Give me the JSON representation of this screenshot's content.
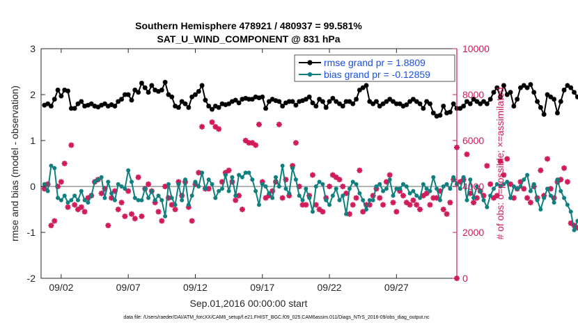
{
  "colors": {
    "rmse": "#000000",
    "bias": "#0f7f7f",
    "obs": "#d01c5a",
    "zero_line": "#b3b3b3"
  },
  "chart_data": {
    "type": "line",
    "title": "Southern Hemisphere 478921 / 480937 = 99.581%",
    "subtitle": "SAT_U_WIND_COMPONENT @ 831 hPa",
    "xlabel": "Sep.01,2016 00:00:00 start",
    "ylabel_left": "rmse and bias (model - observation)",
    "ylabel_right": "# of obs: o=possible; ×=assimilated",
    "ylim_left": [
      -2,
      3
    ],
    "ylim_right": [
      0,
      10000
    ],
    "xlim_days": [
      0.5,
      31.5
    ],
    "x_tick_labels": [
      "09/02",
      "09/07",
      "09/12",
      "09/17",
      "09/22",
      "09/27"
    ],
    "x_tick_days": [
      2,
      7,
      12,
      17,
      22,
      27
    ],
    "y_left_ticks": [
      "-2",
      "-1",
      "0",
      "1",
      "2",
      "3"
    ],
    "y_right_ticks": [
      "0",
      "2000",
      "4000",
      "6000",
      "8000",
      "10000"
    ],
    "legend": [
      "rmse grand pr = 1.8809",
      "bias grand pr = -0.12859"
    ],
    "footer": "data file: /Users/raeder/DAI/ATM_forcXX/CAM6_setup/f.e21.FHIST_BGC.f09_025.CAM6assim.011/Diags_NTrS_2016-09/obs_diag_output.nc",
    "series": [
      {
        "name": "rmse",
        "x_start_day": 0.75,
        "x_step_day": 0.25,
        "values": [
          1.77,
          1.8,
          1.75,
          1.9,
          2.1,
          1.97,
          2.1,
          2.08,
          1.7,
          1.7,
          1.8,
          1.85,
          1.75,
          1.77,
          1.8,
          1.75,
          1.73,
          1.77,
          1.8,
          1.75,
          1.78,
          1.75,
          1.85,
          1.9,
          2.0,
          2.0,
          1.88,
          2.1,
          2.05,
          2.25,
          2.15,
          2.05,
          2.2,
          2.1,
          2.07,
          2.1,
          2.27,
          2.0,
          1.95,
          1.75,
          1.72,
          1.85,
          1.8,
          1.72,
          1.95,
          2.0,
          2.07,
          2.2,
          1.88,
          1.75,
          1.68,
          1.75,
          1.72,
          1.8,
          1.78,
          1.8,
          1.85,
          1.88,
          1.82,
          1.9,
          1.92,
          1.9,
          1.9,
          1.95,
          1.93,
          1.95,
          1.7,
          1.85,
          1.9,
          1.87,
          1.85,
          1.75,
          1.82,
          1.85,
          1.85,
          1.77,
          1.85,
          1.87,
          1.9,
          1.95,
          1.82,
          1.75,
          1.9,
          1.85,
          1.72,
          1.85,
          1.92,
          1.85,
          1.8,
          1.75,
          1.85,
          1.85,
          1.8,
          1.9,
          2.1,
          2.15,
          2.2,
          1.85,
          1.8,
          1.85,
          1.75,
          1.8,
          1.85,
          1.9,
          1.85,
          1.8,
          1.8,
          1.75,
          1.78,
          1.85,
          1.9,
          1.85,
          1.8,
          1.7,
          1.85,
          1.8,
          1.6,
          1.53,
          1.55,
          1.75,
          1.6,
          1.62,
          1.8,
          1.7,
          1.7,
          1.75,
          1.85,
          1.8,
          1.9,
          1.85,
          1.8,
          1.85,
          1.8,
          1.9,
          2.05,
          2.15,
          1.95,
          2.2,
          2.0,
          2.05,
          1.75,
          1.9,
          2.15,
          2.2,
          2.15,
          2.22,
          2.05,
          1.85,
          1.72,
          1.57,
          2.0,
          1.95,
          1.9,
          1.6,
          1.85,
          2.1,
          2.2,
          2.15,
          2.05,
          1.95,
          2.05,
          1.95,
          2.0,
          1.85,
          1.9,
          1.97,
          1.95
        ]
      },
      {
        "name": "bias",
        "x_start_day": 0.75,
        "x_step_day": 0.25,
        "values": [
          0.05,
          -0.1,
          0.45,
          0.4,
          -0.25,
          -0.3,
          -0.2,
          -0.35,
          -0.3,
          -0.2,
          -0.3,
          -0.1,
          -0.3,
          -0.35,
          -0.2,
          0.1,
          0.15,
          0.2,
          -0.25,
          0.1,
          -0.15,
          -0.3,
          0.05,
          0.0,
          -0.05,
          0.35,
          0.1,
          -0.25,
          -0.3,
          -0.3,
          -0.05,
          -0.25,
          -0.1,
          -0.3,
          -0.2,
          -0.3,
          -0.65,
          0.05,
          -0.25,
          -0.4,
          0.05,
          -0.3,
          0.15,
          -0.4,
          -0.2,
          0.1,
          0.0,
          0.3,
          -0.05,
          0.15,
          0.05,
          -0.25,
          -0.1,
          -0.05,
          0.25,
          -0.1,
          0.2,
          -0.2,
          0.25,
          0.2,
          0.3,
          0.3,
          0.15,
          -0.1,
          -0.4,
          0.05,
          0.0,
          -0.15,
          -0.25,
          0.2,
          0.0,
          0.45,
          -0.05,
          -0.15,
          0.4,
          0.15,
          -0.2,
          -0.3,
          -0.05,
          -0.25,
          -0.55,
          0.0,
          0.1,
          0.05,
          -0.3,
          -0.4,
          -0.2,
          -0.05,
          -0.3,
          -0.2,
          -0.6,
          -0.05,
          0.1,
          0.05,
          -0.15,
          -0.3,
          -0.5,
          -0.3,
          -0.3,
          0.0,
          0.05,
          -0.1,
          -0.05,
          0.15,
          -0.2,
          -0.05,
          -0.05,
          0.05,
          0.0,
          -0.15,
          -0.1,
          -0.2,
          -0.25,
          0.05,
          -0.05,
          -0.1,
          0.2,
          -0.05,
          -0.3,
          0.0,
          0.05,
          -0.05,
          0.2,
          0.05,
          -0.05,
          0.2,
          -0.3,
          0.15,
          -0.25,
          0.0,
          -0.1,
          -0.3,
          -0.45,
          -0.2,
          -0.05,
          0.05,
          0.0,
          0.05,
          0.1,
          -0.25,
          0.0,
          -0.05,
          0.0,
          0.15,
          0.25,
          -0.1,
          0.05,
          -0.3,
          -0.5,
          -0.25,
          -0.05,
          -0.2,
          -0.35,
          0.15,
          -0.1,
          -0.25,
          -0.4,
          -0.55,
          -0.95,
          -0.75,
          -0.8,
          -0.7,
          -0.55,
          -0.4,
          -0.25,
          -0.1
        ]
      },
      {
        "name": "obs_possible_and_assimilated",
        "x_start_day": 0.75,
        "x_step_day": 0.25,
        "values": [
          3900,
          4100,
          2300,
          2500,
          4000,
          4200,
          5000,
          3100,
          5800,
          3200,
          3000,
          3100,
          2900,
          3500,
          3600,
          4200,
          4300,
          3700,
          3900,
          2300,
          3500,
          3800,
          3000,
          3300,
          2700,
          3800,
          2800,
          2600,
          4400,
          2700,
          3900,
          4100,
          3800,
          3300,
          2900,
          2500,
          4000,
          3500,
          3200,
          3000,
          4200,
          3600,
          4200,
          3100,
          2500,
          4100,
          4600,
          6600,
          3900,
          3900,
          6800,
          6600,
          6500,
          4200,
          4600,
          4700,
          4200,
          3400,
          3600,
          3000,
          6000,
          5900,
          5900,
          5800,
          6700,
          4200,
          3500,
          3600,
          3800,
          4200,
          6700,
          3500,
          4300,
          3600,
          4900,
          5900,
          4000,
          3200,
          3200,
          3600,
          4500,
          3200,
          3000,
          2900,
          3500,
          4000,
          4500,
          4400,
          4300,
          4000,
          3700,
          2800,
          3200,
          3500,
          4700,
          2900,
          3200,
          3200,
          3600,
          3900,
          3500,
          3200,
          4200,
          4500,
          3300,
          2900,
          3800,
          3600,
          3300,
          3200,
          3400,
          3200,
          3000,
          3600,
          3700,
          3200,
          3500,
          3500,
          3800,
          3000,
          2800,
          3300,
          4300,
          5700,
          4200,
          4300,
          5400,
          3700,
          3300,
          3500,
          3800,
          3600,
          4900,
          4100,
          3500,
          3600,
          5100,
          4500,
          5200,
          4100,
          3500,
          3900,
          4200,
          3900,
          3500,
          3300,
          4000,
          3500,
          4700,
          3600,
          5200,
          3900,
          3500,
          4200,
          4300,
          4800,
          4200,
          2400,
          2300,
          2200,
          2600,
          2000,
          2400,
          5200,
          2300,
          2500,
          4500,
          3900,
          2400,
          2500
        ]
      }
    ],
    "obs_final_point": {
      "day": 31.5,
      "value": 0
    }
  }
}
